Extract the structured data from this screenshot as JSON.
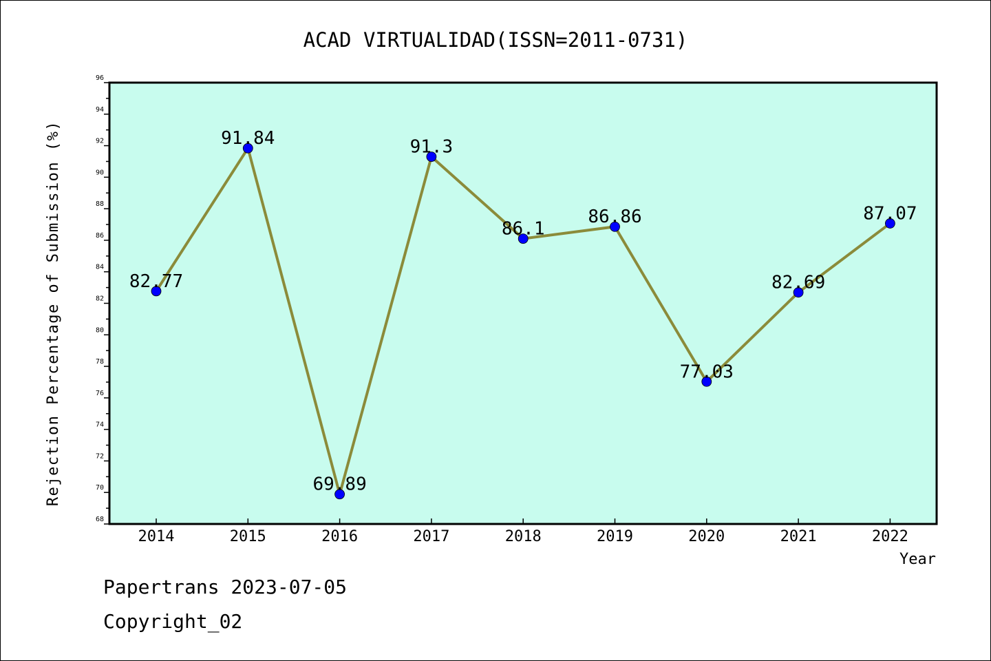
{
  "chart_data": {
    "type": "line",
    "title": "ACAD VIRTUALIDAD(ISSN=2011-0731)",
    "xlabel": "Year",
    "ylabel": "Rejection Percentage of Submission (%)",
    "categories": [
      "2014",
      "2015",
      "2016",
      "2017",
      "2018",
      "2019",
      "2020",
      "2021",
      "2022"
    ],
    "series": [
      {
        "values": [
          82.77,
          91.84,
          69.89,
          91.3,
          86.1,
          86.86,
          77.03,
          82.69,
          87.07
        ],
        "labels": [
          "82.77",
          "91.84",
          "69.89",
          "91.3",
          "86.1",
          "86.86",
          "77.03",
          "82.69",
          "87.07"
        ]
      }
    ],
    "ylim": [
      68,
      96
    ],
    "yticks": [
      "68",
      "70",
      "72",
      "74",
      "76",
      "78",
      "80",
      "82",
      "84",
      "86",
      "88",
      "90",
      "92",
      "94",
      "96"
    ],
    "grid": false,
    "colors": {
      "plot_background": "#c8fcee",
      "line": "#8b8b3a",
      "marker": "#0000ff"
    }
  },
  "footer": {
    "line1": "Papertrans 2023-07-05",
    "line2": "Copyright_02"
  }
}
